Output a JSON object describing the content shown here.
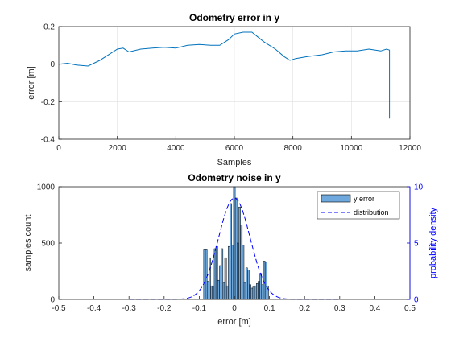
{
  "chart_data": [
    {
      "type": "line",
      "title": "Odometry error in y",
      "xlabel": "Samples",
      "ylabel": "error [m]",
      "xlim": [
        0,
        12000
      ],
      "ylim": [
        -0.4,
        0.2
      ],
      "xticks": [
        0,
        2000,
        4000,
        6000,
        8000,
        10000,
        12000
      ],
      "yticks": [
        -0.4,
        -0.2,
        0,
        0.2
      ],
      "xtick_labels": [
        "0",
        "2000",
        "4000",
        "6000",
        "8000",
        "10000",
        "12000"
      ],
      "ytick_labels": [
        "-0.4",
        "-0.2",
        "0",
        "0.2"
      ],
      "grid": true,
      "color": "#0072bd",
      "x": [
        0,
        300,
        600,
        1000,
        1400,
        1800,
        2000,
        2200,
        2400,
        2800,
        3200,
        3600,
        4000,
        4400,
        4800,
        5200,
        5500,
        5800,
        6000,
        6300,
        6600,
        7000,
        7400,
        7700,
        7900,
        8100,
        8500,
        9000,
        9400,
        9800,
        10200,
        10600,
        11000,
        11200,
        11300,
        11300
      ],
      "y": [
        0.0,
        0.005,
        -0.005,
        -0.01,
        0.02,
        0.06,
        0.08,
        0.085,
        0.065,
        0.08,
        0.085,
        0.09,
        0.085,
        0.1,
        0.105,
        0.1,
        0.1,
        0.13,
        0.16,
        0.17,
        0.17,
        0.12,
        0.08,
        0.04,
        0.02,
        0.03,
        0.04,
        0.05,
        0.065,
        0.07,
        0.07,
        0.08,
        0.07,
        0.08,
        0.075,
        -0.29
      ]
    },
    {
      "type": "bar",
      "title": "Odometry noise in y",
      "xlabel": "error [m]",
      "ylabel": "samples count",
      "ylabel_right": "probability density",
      "xlim": [
        -0.5,
        0.5
      ],
      "ylim": [
        0,
        1000
      ],
      "ylim_right": [
        0,
        10
      ],
      "xticks": [
        -0.5,
        -0.4,
        -0.3,
        -0.2,
        -0.1,
        0,
        0.1,
        0.2,
        0.3,
        0.4,
        0.5
      ],
      "xtick_labels": [
        "-0.5",
        "-0.4",
        "-0.3",
        "-0.2",
        "-0.1",
        "0",
        "0.1",
        "0.2",
        "0.3",
        "0.4",
        "0.5"
      ],
      "yticks": [
        0,
        500,
        1000
      ],
      "ytick_labels": [
        "0",
        "500",
        "1000"
      ],
      "yticks_right": [
        0,
        5,
        10
      ],
      "ytick_labels_right": [
        "0",
        "5",
        "10"
      ],
      "grid": false,
      "legend_placement": "top-right",
      "series": [
        {
          "name": "y error",
          "kind": "histogram",
          "color": "#6fa8dc",
          "x": [
            -0.085,
            -0.08,
            -0.075,
            -0.07,
            -0.065,
            -0.06,
            -0.055,
            -0.05,
            -0.045,
            -0.04,
            -0.035,
            -0.03,
            -0.025,
            -0.02,
            -0.015,
            -0.01,
            -0.005,
            0.0,
            0.005,
            0.01,
            0.015,
            0.02,
            0.025,
            0.03,
            0.035,
            0.04,
            0.045,
            0.05,
            0.055,
            0.06,
            0.065,
            0.07,
            0.075,
            0.08,
            0.085,
            0.09,
            0.095
          ],
          "values": [
            440,
            440,
            160,
            370,
            120,
            120,
            450,
            470,
            170,
            300,
            450,
            150,
            370,
            120,
            470,
            850,
            480,
            1000,
            900,
            500,
            820,
            660,
            480,
            150,
            280,
            260,
            130,
            100,
            110,
            120,
            140,
            160,
            230,
            130,
            340,
            330,
            120
          ]
        },
        {
          "name": "distribution",
          "kind": "line",
          "color": "#0000ff",
          "axis": "right",
          "style": "dashed",
          "mean": 0.0,
          "std": 0.045,
          "peak": 9.0
        }
      ]
    }
  ]
}
